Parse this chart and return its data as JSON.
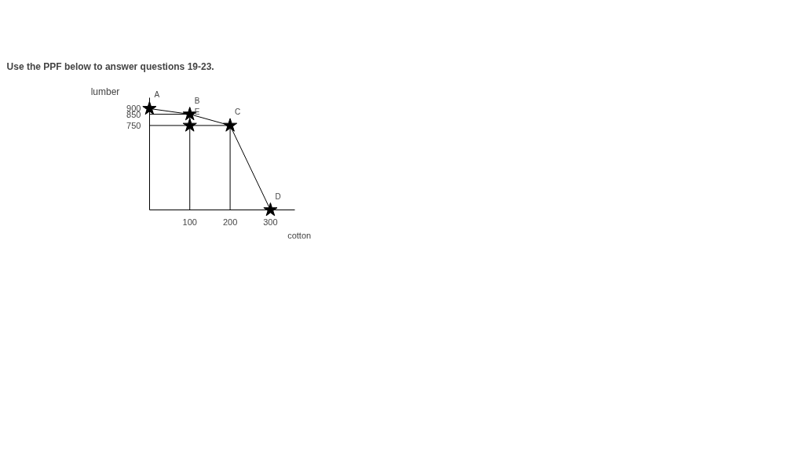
{
  "chart_data": {
    "type": "line",
    "title": "Use the PPF below to answer questions 19-23.",
    "xlabel": "cotton",
    "ylabel": "lumber",
    "xlim": [
      0,
      360
    ],
    "ylim": [
      0,
      1000
    ],
    "xticks": [
      100,
      200,
      300
    ],
    "yticks": [
      750,
      850,
      900
    ],
    "grid": false,
    "series": [
      {
        "color": "#000000",
        "x": [
          0,
          100,
          200,
          300
        ],
        "values": [
          900,
          850,
          750,
          0
        ]
      },
      {
        "color": "#000000",
        "x": [
          0,
          100,
          100
        ],
        "values": [
          850,
          850,
          0
        ]
      },
      {
        "color": "#000000",
        "x": [
          0,
          200,
          200
        ],
        "values": [
          750,
          750,
          0
        ]
      },
      {
        "type": "scatter",
        "marker": "star",
        "color": "#000000",
        "x": [
          0,
          100,
          200,
          300,
          100
        ],
        "values": [
          900,
          850,
          750,
          0,
          750
        ]
      }
    ],
    "annotations": [
      {
        "text": "A",
        "x": 0,
        "y": 900
      },
      {
        "text": "B",
        "x": 100,
        "y": 850
      },
      {
        "text": "C",
        "x": 200,
        "y": 750
      },
      {
        "text": "D",
        "x": 300,
        "y": 0
      },
      {
        "text": "E",
        "x": 100,
        "y": 750
      }
    ]
  }
}
